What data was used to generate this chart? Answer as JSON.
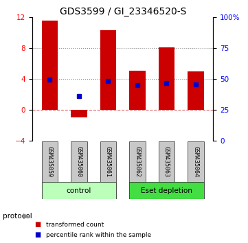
{
  "title": "GDS3599 / GI_23346520-S",
  "samples": [
    "GSM435059",
    "GSM435060",
    "GSM435061",
    "GSM435062",
    "GSM435063",
    "GSM435064"
  ],
  "groups": [
    "control",
    "control",
    "control",
    "Eset depletion",
    "Eset depletion",
    "Eset depletion"
  ],
  "group_labels": [
    "control",
    "Eset depletion"
  ],
  "group_colors": [
    "#bbffbb",
    "#44dd44"
  ],
  "bar_bottom": [
    0,
    -1.0,
    0,
    0,
    0,
    0
  ],
  "bar_top": [
    11.5,
    0,
    10.3,
    5.1,
    8.1,
    5.0
  ],
  "blue_y": [
    3.9,
    1.8,
    3.7,
    3.2,
    3.5,
    3.3
  ],
  "bar_color": "#cc0000",
  "blue_color": "#0000cc",
  "ylim_left": [
    -4,
    12
  ],
  "ylim_right": [
    0,
    100
  ],
  "yticks_left": [
    -4,
    0,
    4,
    8,
    12
  ],
  "yticks_right": [
    0,
    25,
    50,
    75,
    100
  ],
  "ytick_labels_right": [
    "0",
    "25",
    "50",
    "75",
    "100%"
  ],
  "hlines": [
    0,
    4,
    8
  ],
  "hline_styles": [
    "--",
    ":",
    ":"
  ],
  "hline_colors": [
    "#dd6666",
    "#888888",
    "#888888"
  ],
  "bar_width": 0.55,
  "protocol_label": "protocol",
  "legend_items": [
    "transformed count",
    "percentile rank within the sample"
  ],
  "legend_colors": [
    "#cc0000",
    "#0000cc"
  ],
  "title_fontsize": 10,
  "tick_fontsize": 7.5
}
